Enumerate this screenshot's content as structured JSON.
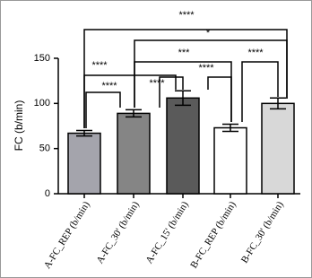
{
  "chart_data": {
    "type": "bar",
    "y_label": "FC (b/min)",
    "categories": [
      "A-FC_REP (b/min)",
      "A-FC_30' (b/min)",
      "A-FC_15' (b/min)",
      "B-FC_REP (b/min)",
      "B-FC_30' (b/min)"
    ],
    "values": [
      67,
      89,
      106,
      73,
      100
    ],
    "errors": [
      3,
      4,
      8,
      4,
      6
    ],
    "colors": [
      "#a4a4ac",
      "#858585",
      "#5a5a5a",
      "#ffffff",
      "#d8d8d8"
    ],
    "ylim": [
      0,
      150
    ],
    "yticks": [
      0,
      50,
      100,
      150
    ],
    "annotations": [
      "****",
      "*",
      "****",
      "***",
      "****",
      "****",
      "****",
      "****"
    ]
  }
}
